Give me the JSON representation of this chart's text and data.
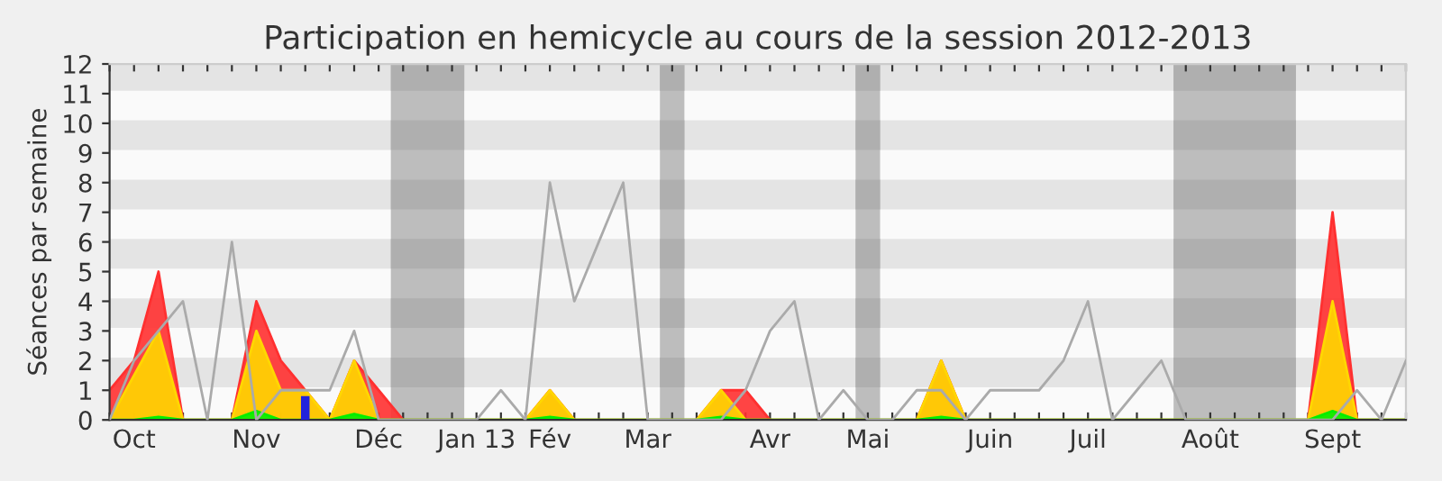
{
  "chart_data": {
    "type": "area",
    "title": "Participation en hemicycle au cours de la session 2012-2013",
    "ylabel": "Séances par semaine",
    "categories": [
      null,
      "Oct",
      null,
      null,
      null,
      null,
      "Nov",
      null,
      null,
      null,
      null,
      "Déc",
      null,
      null,
      null,
      "Jan 13",
      null,
      null,
      "Fév",
      null,
      null,
      null,
      "Mar",
      null,
      null,
      null,
      null,
      "Avr",
      null,
      null,
      null,
      "Mai",
      null,
      null,
      null,
      null,
      "Juin",
      null,
      null,
      null,
      "Juil",
      null,
      null,
      null,
      null,
      "Août",
      null,
      null,
      null,
      null,
      "Sept",
      null,
      null,
      null
    ],
    "series": [
      {
        "color": "#ff3030",
        "values": [
          1,
          2,
          5,
          0,
          0,
          0,
          4,
          2,
          1,
          0,
          2,
          1,
          0,
          0,
          0,
          0,
          0,
          0,
          1,
          0,
          0,
          0,
          0,
          0,
          0,
          1,
          1,
          0,
          0,
          0,
          0,
          0,
          0,
          0,
          2,
          0,
          0,
          0,
          0,
          0,
          0,
          0,
          0,
          0,
          0,
          0,
          0,
          0,
          0,
          0,
          7,
          0,
          0,
          0
        ]
      },
      {
        "color": "#ffd700",
        "values": [
          0,
          1.5,
          3,
          0,
          0,
          0,
          3,
          1,
          1,
          0,
          2,
          0,
          0,
          0,
          0,
          0,
          0,
          0,
          1,
          0,
          0,
          0,
          0,
          0,
          0,
          1,
          0,
          0,
          0,
          0,
          0,
          0,
          0,
          0,
          2,
          0,
          0,
          0,
          0,
          0,
          0,
          0,
          0,
          0,
          0,
          0,
          0,
          0,
          0,
          0,
          4,
          0,
          0,
          0
        ]
      },
      {
        "color": "#00ee00",
        "values": [
          0,
          0,
          0.1,
          0,
          0,
          0,
          0.3,
          0,
          0,
          0,
          0.2,
          0,
          0,
          0,
          0,
          0,
          0,
          0,
          0.1,
          0,
          0,
          0,
          0,
          0,
          0,
          0.1,
          0,
          0,
          0,
          0,
          0,
          0,
          0,
          0,
          0.1,
          0,
          0,
          0,
          0,
          0,
          0,
          0,
          0,
          0,
          0,
          0,
          0,
          0,
          0,
          0,
          0.3,
          0,
          0,
          0
        ]
      },
      {
        "type": "bar",
        "color": "#2222dd",
        "values": [
          null,
          null,
          null,
          null,
          null,
          null,
          null,
          null,
          0.8,
          null,
          null,
          null,
          null,
          null,
          null,
          null,
          null,
          null,
          null,
          null,
          null,
          null,
          null,
          null,
          null,
          null,
          null,
          null,
          null,
          null,
          null,
          null,
          null,
          null,
          null,
          null,
          null,
          null,
          null,
          null,
          null,
          null,
          null,
          null,
          null,
          null,
          null,
          null,
          null,
          null,
          null,
          null,
          null,
          null
        ]
      },
      {
        "type": "line",
        "color": "#aaaaaa",
        "values": [
          0,
          2,
          3,
          4,
          0,
          6,
          0,
          1,
          1,
          1,
          3,
          0,
          0,
          0,
          0,
          0,
          1,
          0,
          8,
          4,
          6,
          8,
          0,
          0,
          0,
          0,
          1,
          3,
          4,
          0,
          1,
          0,
          0,
          1,
          1,
          0,
          1,
          1,
          1,
          2,
          4,
          0,
          1,
          2,
          0,
          0,
          0,
          0,
          0,
          0,
          0,
          1,
          0,
          2
        ]
      }
    ],
    "ylim": [
      0,
      12
    ],
    "yticks": [
      0,
      1,
      2,
      3,
      4,
      5,
      6,
      7,
      8,
      9,
      10,
      11,
      12
    ],
    "legend": false
  }
}
